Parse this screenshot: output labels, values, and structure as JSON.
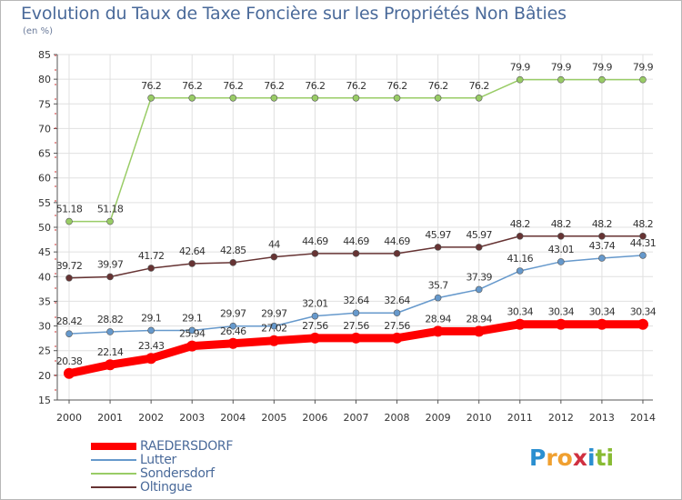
{
  "chart_data": {
    "type": "line",
    "title": "Evolution du Taux de Taxe Foncière sur les Propriétés Non Bâties",
    "ylabel": "(en %)",
    "xlabel": "",
    "ylim": [
      15,
      85
    ],
    "yticks": [
      15,
      20,
      25,
      30,
      35,
      40,
      45,
      50,
      55,
      60,
      65,
      70,
      75,
      80,
      85
    ],
    "x": [
      "2000",
      "2001",
      "2002",
      "2003",
      "2004",
      "2005",
      "2006",
      "2007",
      "2008",
      "2009",
      "2010",
      "2011",
      "2012",
      "2013",
      "2014"
    ],
    "grid": true,
    "legend_position": "bottom-left",
    "series": [
      {
        "name": "RAEDERSDORF",
        "color": "#ff0000",
        "values": [
          20.38,
          22.14,
          23.43,
          25.94,
          26.46,
          27.02,
          27.56,
          27.56,
          27.56,
          28.94,
          28.94,
          30.34,
          30.34,
          30.34,
          30.34
        ],
        "labels": [
          "20.38",
          "22.14",
          "23.43",
          "25.94",
          "26.46",
          "27.02",
          "27.56",
          "27.56",
          "27.56",
          "28.94",
          "28.94",
          "30.34",
          "30.34",
          "30.34",
          "30.34"
        ]
      },
      {
        "name": "Lutter",
        "color": "#6699cc",
        "values": [
          28.42,
          28.82,
          29.1,
          29.1,
          29.97,
          29.97,
          32.01,
          32.64,
          32.64,
          35.7,
          37.39,
          41.16,
          43.01,
          43.74,
          44.31
        ],
        "labels": [
          "28.42",
          "28.82",
          "29.1",
          "29.1",
          "29.97",
          "29.97",
          "32.01",
          "32.64",
          "32.64",
          "35.7",
          "37.39",
          "41.16",
          "43.01",
          "43.74",
          "44.31"
        ]
      },
      {
        "name": "Sondersdorf",
        "color": "#99cc66",
        "values": [
          51.18,
          51.18,
          76.2,
          76.2,
          76.2,
          76.2,
          76.2,
          76.2,
          76.2,
          76.2,
          76.2,
          79.9,
          79.9,
          79.9,
          79.9
        ],
        "labels": [
          "51.18",
          "51.18",
          "76.2",
          "76.2",
          "76.2",
          "76.2",
          "76.2",
          "76.2",
          "76.2",
          "76.2",
          "76.2",
          "79.9",
          "79.9",
          "79.9",
          "79.9"
        ]
      },
      {
        "name": "Oltingue",
        "color": "#663333",
        "values": [
          39.72,
          39.97,
          41.72,
          42.64,
          42.85,
          44,
          44.69,
          44.69,
          44.69,
          45.97,
          45.97,
          48.2,
          48.2,
          48.2,
          48.2
        ],
        "labels": [
          "39.72",
          "39.97",
          "41.72",
          "42.64",
          "42.85",
          "44",
          "44.69",
          "44.69",
          "44.69",
          "45.97",
          "45.97",
          "48.2",
          "48.2",
          "48.2",
          "48.2"
        ]
      }
    ]
  },
  "branding": {
    "logo_letters": [
      "P",
      "r",
      "o",
      "x",
      "i",
      "t",
      "i"
    ],
    "logo_colors": [
      "#2a8fd0",
      "#f0a030",
      "#f0a030",
      "#d03040",
      "#2a8fd0",
      "#88bb33",
      "#88bb33"
    ]
  }
}
